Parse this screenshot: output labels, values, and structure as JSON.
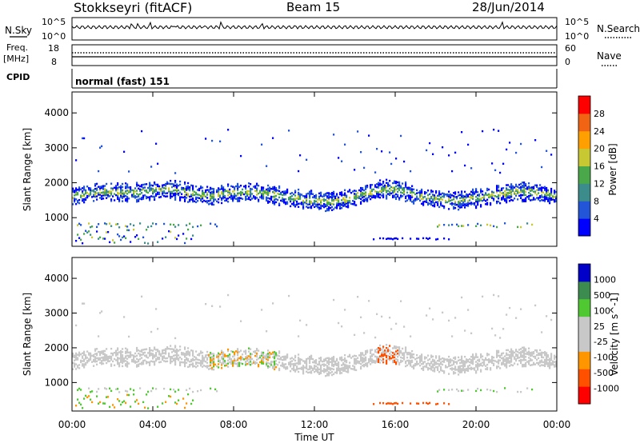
{
  "header": {
    "station": "Stokkseyri (fitACF)",
    "beam": "Beam 15",
    "date": "28/Jun/2014"
  },
  "nsky_panel": {
    "left_label": "N.Sky",
    "right_label": "N.Search",
    "left_ticks": [
      "10^5",
      "10^0"
    ],
    "right_ticks": [
      "10^5",
      "10^0"
    ]
  },
  "freq_panel": {
    "left_label": "Freq.",
    "left_unit": "[MHz]",
    "right_label": "Nave",
    "left_ticks": [
      "18",
      "8"
    ],
    "right_ticks": [
      "60",
      "0"
    ]
  },
  "cpid_panel": {
    "label": "CPID",
    "mode": "normal (fast) 151"
  },
  "chart_data": [
    {
      "type": "heatmap",
      "name": "power",
      "ylabel": "Slant Range [km]",
      "yticks": [
        1000,
        2000,
        3000,
        4000
      ],
      "ylim": [
        180,
        4600
      ],
      "colorbar_label": "Power [dB]",
      "colorbar_ticks": [
        "28",
        "24",
        "20",
        "16",
        "12",
        "8",
        "4"
      ],
      "colorscale": [
        "#0000ff",
        "#2255d8",
        "#3c8c8c",
        "#4aa84a",
        "#c8c832",
        "#ffa000",
        "#f06414",
        "#ff0000"
      ]
    },
    {
      "type": "heatmap",
      "name": "velocity",
      "ylabel": "Slant Range [km]",
      "yticks": [
        1000,
        2000,
        3000,
        4000
      ],
      "ylim": [
        180,
        4600
      ],
      "xlabel": "Time UT",
      "xticks": [
        "00:00",
        "04:00",
        "08:00",
        "12:00",
        "16:00",
        "20:00",
        "00:00"
      ],
      "colorbar_label": "Velocity [m s^-1]",
      "colorbar_ticks": [
        "1000",
        "500",
        "100",
        "25",
        "-25",
        "-100",
        "-500",
        "-1000"
      ],
      "colorscale": [
        "#ff0000",
        "#ff5000",
        "#ff9600",
        "#c8c8c8",
        "#c8c8c8",
        "#50c832",
        "#3c8c50",
        "#0000c8"
      ]
    }
  ]
}
